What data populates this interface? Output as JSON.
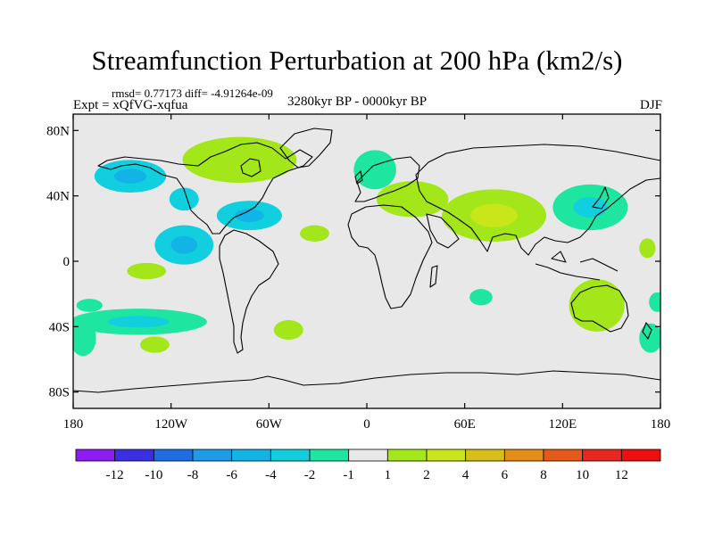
{
  "chart_data": {
    "type": "heatmap",
    "title": "Streamfunction Perturbation at 200 hPa (km2/s)",
    "stats_text": "rmsd= 0.77173 diff= -4.91264e-09",
    "left_label": "Expt = xQfVG-xqfua",
    "center_label": "3280kyr BP - 0000kyr BP",
    "right_label": "DJF",
    "x_ticks": [
      {
        "lon": -180,
        "label": "180"
      },
      {
        "lon": -120,
        "label": "120W"
      },
      {
        "lon": -60,
        "label": "60W"
      },
      {
        "lon": 0,
        "label": "0"
      },
      {
        "lon": 60,
        "label": "60E"
      },
      {
        "lon": 120,
        "label": "120E"
      },
      {
        "lon": 180,
        "label": "180"
      }
    ],
    "y_ticks": [
      {
        "lat": 80,
        "label": "80N"
      },
      {
        "lat": 40,
        "label": "40N"
      },
      {
        "lat": 0,
        "label": "0"
      },
      {
        "lat": -40,
        "label": "40S"
      },
      {
        "lat": -80,
        "label": "80S"
      }
    ],
    "xlim": [
      -180,
      180
    ],
    "ylim": [
      -90,
      90
    ],
    "colorbar": {
      "labels": [
        "-12",
        "-10",
        "-8",
        "-6",
        "-4",
        "-2",
        "-1",
        "1",
        "2",
        "4",
        "6",
        "8",
        "10",
        "12"
      ],
      "colors": [
        "#8c1cf0",
        "#3b2fe0",
        "#1e6ee0",
        "#1e9be6",
        "#12b3e6",
        "#12cfe0",
        "#1ee6a0",
        "#e8e8e8",
        "#a3e619",
        "#c8e619",
        "#d7be19",
        "#e68c19",
        "#e65a19",
        "#e6281e",
        "#eb0f0f"
      ]
    },
    "anomalies": [
      {
        "lon": -145,
        "lat": 52,
        "rlon": 22,
        "rlat": 10,
        "level": "-2",
        "inner": "-4"
      },
      {
        "lon": -112,
        "lat": 38,
        "rlon": 9,
        "rlat": 7,
        "level": "-2"
      },
      {
        "lon": -112,
        "lat": 10,
        "rlon": 18,
        "rlat": 12,
        "level": "-2",
        "inner": "-4"
      },
      {
        "lon": -72,
        "lat": 28,
        "rlon": 20,
        "rlat": 9,
        "level": "-2",
        "inner": "-4"
      },
      {
        "lon": -78,
        "lat": 62,
        "rlon": 35,
        "rlat": 14,
        "level": "1"
      },
      {
        "lon": -170,
        "lat": -27,
        "rlon": 8,
        "rlat": 4,
        "level": "-1"
      },
      {
        "lon": -140,
        "lat": -37,
        "rlon": 42,
        "rlat": 8,
        "level": "-1",
        "inner": "-2"
      },
      {
        "lon": -135,
        "lat": -6,
        "rlon": 12,
        "rlat": 5,
        "level": "1"
      },
      {
        "lon": -130,
        "lat": -51,
        "rlon": 9,
        "rlat": 5,
        "level": "1"
      },
      {
        "lon": -48,
        "lat": -42,
        "rlon": 9,
        "rlat": 6,
        "level": "1"
      },
      {
        "lon": -32,
        "lat": 17,
        "rlon": 9,
        "rlat": 5,
        "level": "1"
      },
      {
        "lon": 5,
        "lat": 56,
        "rlon": 13,
        "rlat": 12,
        "level": "-1"
      },
      {
        "lon": 28,
        "lat": 38,
        "rlon": 22,
        "rlat": 11,
        "level": "1"
      },
      {
        "lon": 78,
        "lat": 28,
        "rlon": 32,
        "rlat": 16,
        "level": "1",
        "inner": "2"
      },
      {
        "lon": 137,
        "lat": 33,
        "rlon": 23,
        "rlat": 14,
        "level": "-1",
        "inner": "-2"
      },
      {
        "lon": 70,
        "lat": -22,
        "rlon": 7,
        "rlat": 5,
        "level": "-1"
      },
      {
        "lon": 141,
        "lat": -27,
        "rlon": 17,
        "rlat": 16,
        "level": "1"
      },
      {
        "lon": -174,
        "lat": -47,
        "rlon": 8,
        "rlat": 11,
        "level": "-1"
      },
      {
        "lon": 174,
        "lat": -47,
        "rlon": 7,
        "rlat": 9,
        "level": "-1"
      },
      {
        "lon": 178,
        "lat": -25,
        "rlon": 5,
        "rlat": 6,
        "level": "-1"
      },
      {
        "lon": 172,
        "lat": 8,
        "rlon": 5,
        "rlat": 6,
        "level": "1"
      }
    ]
  }
}
